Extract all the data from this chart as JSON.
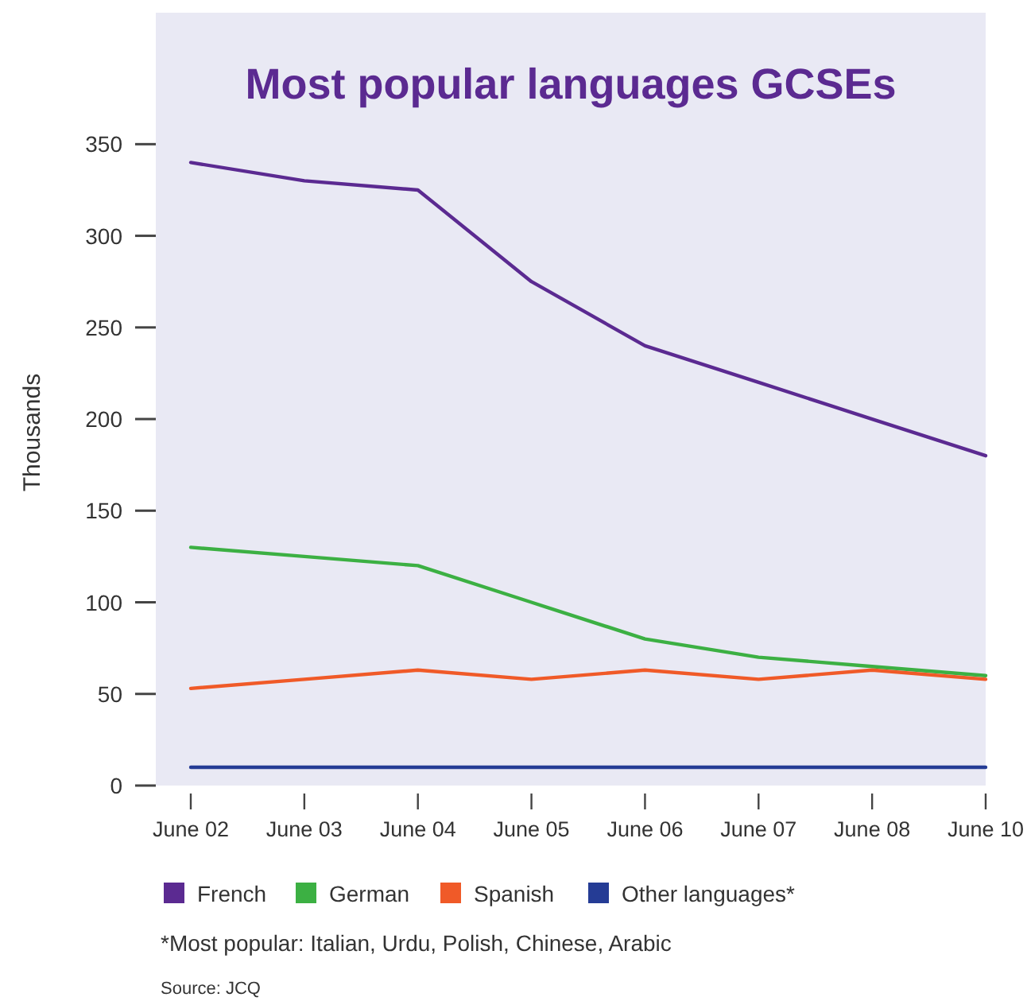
{
  "chart_data": {
    "type": "line",
    "title": "Most popular languages GCSEs",
    "ylabel": "Thousands",
    "categories": [
      "June 02",
      "June 03",
      "June 04",
      "June 05",
      "June 06",
      "June 07",
      "June 08",
      "June 10"
    ],
    "series": [
      {
        "name": "French",
        "color": "#5b2a91",
        "values": [
          340,
          330,
          325,
          275,
          240,
          220,
          200,
          180
        ]
      },
      {
        "name": "German",
        "color": "#3cb043",
        "values": [
          130,
          125,
          120,
          100,
          80,
          70,
          65,
          60
        ]
      },
      {
        "name": "Spanish",
        "color": "#f05a28",
        "values": [
          53,
          58,
          63,
          58,
          63,
          58,
          63,
          58
        ]
      },
      {
        "name": "Other languages*",
        "color": "#253c95",
        "values": [
          10,
          10,
          10,
          10,
          10,
          10,
          10,
          10
        ]
      }
    ],
    "ylim": [
      0,
      420
    ],
    "yticks": [
      0,
      50,
      100,
      150,
      200,
      250,
      300,
      350
    ],
    "grid": false,
    "legend": "bottom",
    "marker": "none",
    "line_style": "solid",
    "annotations": [
      "*Most popular: Italian, Urdu, Polish, Chinese, Arabic",
      "Source: JCQ"
    ]
  }
}
